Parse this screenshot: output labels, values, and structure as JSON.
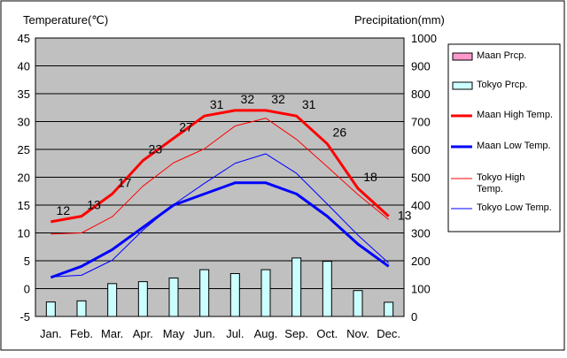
{
  "chart_data": {
    "type": "line",
    "y_left_label": "Temperature(℃)",
    "y_right_label": "Precipitation(mm)",
    "categories": [
      "Jan.",
      "Feb.",
      "Mar.",
      "Apr.",
      "May",
      "Jun.",
      "Jul.",
      "Aug.",
      "Sep.",
      "Oct.",
      "Nov.",
      "Dec."
    ],
    "y_left_range": [
      -5,
      45
    ],
    "y_left_ticks": [
      -5,
      0,
      5,
      10,
      15,
      20,
      25,
      30,
      35,
      40,
      45
    ],
    "y_right_range": [
      0,
      1000
    ],
    "y_right_ticks": [
      0,
      100,
      200,
      300,
      400,
      500,
      600,
      700,
      800,
      900,
      1000
    ],
    "grid": true,
    "legend_position": "right",
    "series": [
      {
        "name": "Maan Prcp.",
        "kind": "bar",
        "axis": "right",
        "color": "#ff99cc",
        "values": [
          0,
          0,
          0,
          0,
          0,
          0,
          0,
          0,
          0,
          0,
          0,
          0
        ]
      },
      {
        "name": "Tokyo Prcp.",
        "kind": "bar",
        "axis": "right",
        "color": "#ccffff",
        "values": [
          52,
          56,
          118,
          125,
          138,
          168,
          154,
          168,
          210,
          198,
          93,
          51
        ]
      },
      {
        "name": "Maan High Temp.",
        "kind": "line",
        "axis": "left",
        "color": "#ff0000",
        "width": 3,
        "values": [
          12,
          13,
          17,
          23,
          27,
          31,
          32,
          32,
          31,
          26,
          18,
          13
        ],
        "labels": [
          "12",
          "13",
          "17",
          "23",
          "27",
          "31",
          "32",
          "32",
          "31",
          "26",
          "18",
          "13"
        ]
      },
      {
        "name": "Maan Low Temp.",
        "kind": "line",
        "axis": "left",
        "color": "#0000ff",
        "width": 3,
        "values": [
          2,
          4,
          7,
          11,
          15,
          17,
          19,
          19,
          17,
          13,
          8,
          4
        ]
      },
      {
        "name": "Tokyo High Temp.",
        "kind": "line",
        "axis": "left",
        "color": "#ff0000",
        "width": 1,
        "values": [
          9.8,
          10,
          12.9,
          18.4,
          22.6,
          25.1,
          29.2,
          30.6,
          26.8,
          21.9,
          16.9,
          12.4
        ]
      },
      {
        "name": "Tokyo Low Temp.",
        "kind": "line",
        "axis": "left",
        "color": "#0000ff",
        "width": 1,
        "values": [
          2.1,
          2.4,
          5.1,
          10.5,
          15.1,
          18.9,
          22.5,
          24.2,
          20.7,
          15.2,
          9.6,
          4.6
        ]
      }
    ]
  }
}
